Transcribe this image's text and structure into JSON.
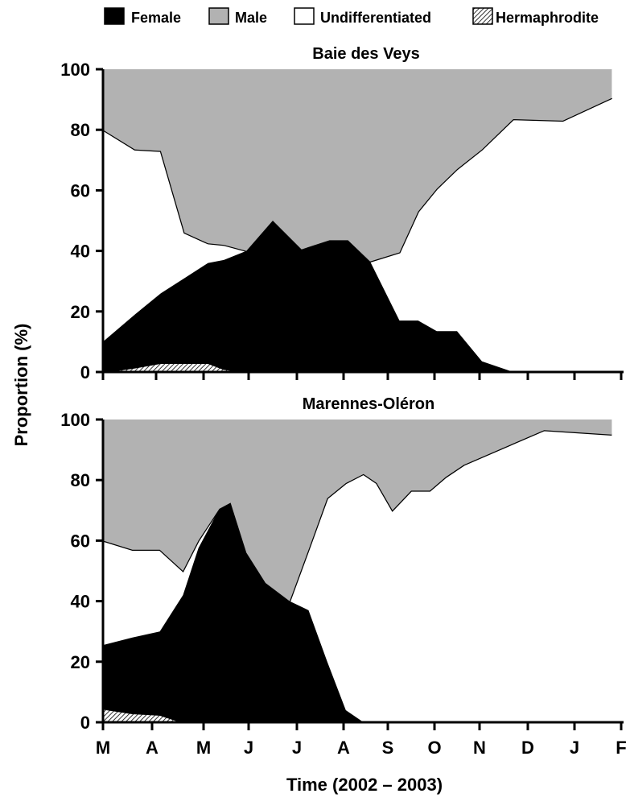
{
  "legend": [
    {
      "label": "Female",
      "color": "#000000"
    },
    {
      "label": "Male",
      "color": "#b2b2b2"
    },
    {
      "label": "Undifferentiated",
      "color": "#ffffff"
    },
    {
      "label": "Hermaphrodite",
      "color": "hatched"
    }
  ],
  "ylabel": "Proportion  (%)",
  "xlabel": "Time (2002 – 2003)",
  "chart_data": [
    {
      "type": "area",
      "stacked": true,
      "title": "Baie des Veys",
      "ylim": [
        0,
        100
      ],
      "yticks": [
        0,
        20,
        40,
        60,
        80,
        100
      ],
      "xticks": [
        "M",
        "A",
        "M",
        "J",
        "J",
        "A",
        "S",
        "O",
        "N",
        "D",
        "J",
        "F"
      ],
      "x": [
        0,
        0.6,
        1.1,
        1.6,
        2.1,
        2.45,
        2.95,
        3.5,
        4.1,
        4.7,
        5.1,
        5.6,
        6.25,
        6.65,
        7.05,
        7.5,
        8.05,
        8.7,
        9.75,
        10.8
      ],
      "series": [
        {
          "name": "Hermaphrodite",
          "values": [
            0,
            1.5,
            3,
            3,
            3,
            1,
            0,
            0,
            0,
            0,
            0,
            0,
            0,
            0,
            0,
            0,
            0,
            0,
            0,
            0
          ]
        },
        {
          "name": "Female",
          "values": [
            10,
            17.5,
            23,
            28,
            33,
            36,
            40,
            50,
            40.5,
            43.5,
            43.5,
            36.5,
            17,
            17,
            13.5,
            13.5,
            3.5,
            0,
            0,
            0
          ]
        },
        {
          "name": "Undifferentiated",
          "values": [
            70,
            54.5,
            47,
            15,
            6.5,
            5,
            0,
            0,
            0,
            0,
            0,
            0,
            22.5,
            36,
            47,
            53.5,
            70,
            83.5,
            83,
            90.5
          ]
        },
        {
          "name": "Male",
          "values": [
            20,
            26.5,
            27,
            54,
            57.5,
            58,
            60,
            50,
            59.5,
            56.5,
            56.5,
            63.5,
            60.5,
            47,
            39.5,
            33,
            26.5,
            16.5,
            17,
            9.5
          ]
        }
      ]
    },
    {
      "type": "area",
      "stacked": true,
      "title": "Marennes-Oléron",
      "ylim": [
        0,
        100
      ],
      "yticks": [
        0,
        20,
        40,
        60,
        80,
        100
      ],
      "xticks": [
        "M",
        "A",
        "M",
        "J",
        "J",
        "A",
        "S",
        "O",
        "N",
        "D",
        "J",
        "F"
      ],
      "x": [
        0,
        0.6,
        1.15,
        1.6,
        1.9,
        2.35,
        2.6,
        2.95,
        3.35,
        3.85,
        4.25,
        4.65,
        5.05,
        5.45,
        5.75,
        6.1,
        6.5,
        6.9,
        7.25,
        7.65,
        9.35,
        10.8
      ],
      "series": [
        {
          "name": "Hermaphrodite",
          "values": [
            4.5,
            3,
            2.5,
            0,
            0,
            0,
            0,
            0,
            0,
            0,
            0,
            0,
            0,
            0,
            0,
            0,
            0,
            0,
            0,
            0,
            0,
            0
          ]
        },
        {
          "name": "Female",
          "values": [
            21,
            25,
            27.5,
            42,
            57.5,
            70.5,
            72.5,
            56,
            46,
            40,
            37,
            20,
            4,
            0,
            0,
            0,
            0,
            0,
            0,
            0,
            0,
            0
          ]
        },
        {
          "name": "Undifferentiated",
          "values": [
            34.5,
            29,
            27,
            8,
            2.5,
            0,
            0,
            0,
            0,
            0,
            20,
            54,
            75,
            82,
            79,
            70,
            76.5,
            76.5,
            81,
            85,
            96.5,
            95
          ]
        },
        {
          "name": "Male",
          "values": [
            40,
            43,
            43,
            50,
            40,
            29.5,
            27.5,
            44,
            54,
            60,
            43,
            26,
            21,
            18,
            21,
            30,
            23.5,
            23.5,
            19,
            15,
            3.5,
            5
          ]
        }
      ]
    }
  ]
}
